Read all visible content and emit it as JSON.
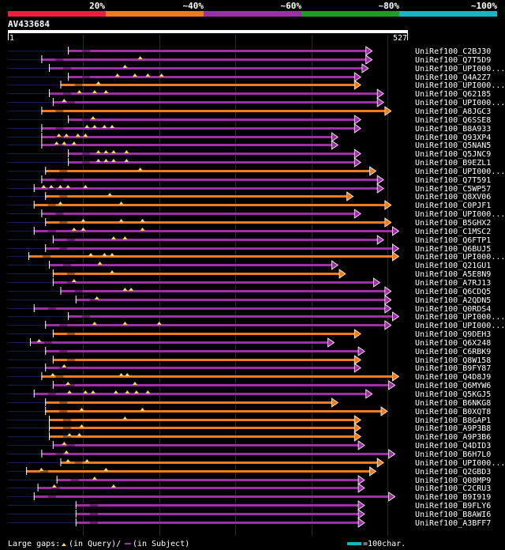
{
  "legend_bar": {
    "segments": [
      {
        "label": "20%",
        "color": "#e8203c"
      },
      {
        "label": "~40%",
        "color": "#f07a1c"
      },
      {
        "label": "~60%",
        "color": "#9c30a4"
      },
      {
        "label": "~80%",
        "color": "#1e9c28"
      },
      {
        "label": "~100%",
        "color": "#18b4c4"
      }
    ]
  },
  "query": {
    "id": "AV433684",
    "start_label": "1",
    "end_label": "527",
    "length": 527
  },
  "colors": {
    "orange": "#f07a1c",
    "purple": "#9c30a4",
    "gap": "#ffd860",
    "grid": "#2a2a2a"
  },
  "hits": [
    {
      "label": "UniRef100_C2BJ30",
      "color": "purple",
      "start": 80,
      "end": 480,
      "gaps": []
    },
    {
      "label": "UniRef100_Q7T5D9",
      "color": "purple",
      "start": 45,
      "end": 480,
      "gaps": [
        175
      ]
    },
    {
      "label": "UniRef100_UPI000...",
      "color": "purple",
      "start": 55,
      "end": 475,
      "gaps": [
        155
      ]
    },
    {
      "label": "UniRef100_Q4A2Z7",
      "color": "purple",
      "start": 80,
      "end": 465,
      "gaps": [
        145,
        168,
        185,
        203
      ]
    },
    {
      "label": "UniRef100_UPI000...",
      "color": "orange",
      "start": 70,
      "end": 465,
      "gaps": [
        120
      ]
    },
    {
      "label": "UniRef100_Q62185",
      "color": "purple",
      "start": 55,
      "end": 495,
      "gaps": [
        95,
        115,
        130
      ]
    },
    {
      "label": "UniRef100_UPI000...",
      "color": "purple",
      "start": 60,
      "end": 495,
      "gaps": [
        75
      ]
    },
    {
      "label": "UniRef100_A8JGC3",
      "color": "orange",
      "start": 45,
      "end": 505,
      "gaps": []
    },
    {
      "label": "UniRef100_Q6SSE8",
      "color": "purple",
      "start": 80,
      "end": 465,
      "gaps": [
        113
      ]
    },
    {
      "label": "UniRef100_B8A933",
      "color": "purple",
      "start": 45,
      "end": 465,
      "gaps": [
        105,
        115,
        128,
        138
      ]
    },
    {
      "label": "UniRef100_Q93XP4",
      "color": "purple",
      "start": 45,
      "end": 435,
      "gaps": [
        68,
        78,
        93,
        103
      ]
    },
    {
      "label": "UniRef100_Q5NAN5",
      "color": "purple",
      "start": 45,
      "end": 435,
      "gaps": [
        65,
        75,
        88
      ]
    },
    {
      "label": "UniRef100_Q5JNC9",
      "color": "purple",
      "start": 80,
      "end": 465,
      "gaps": [
        120,
        130,
        140,
        157
      ]
    },
    {
      "label": "UniRef100_B9EZL1",
      "color": "purple",
      "start": 80,
      "end": 465,
      "gaps": [
        120,
        130,
        140,
        157
      ]
    },
    {
      "label": "UniRef100_UPI000...",
      "color": "orange",
      "start": 50,
      "end": 485,
      "gaps": [
        175
      ]
    },
    {
      "label": "UniRef100_Q7T591",
      "color": "purple",
      "start": 45,
      "end": 495,
      "gaps": []
    },
    {
      "label": "UniRef100_C5WP57",
      "color": "purple",
      "start": 35,
      "end": 495,
      "gaps": [
        48,
        58,
        70,
        80,
        103
      ]
    },
    {
      "label": "UniRef100_Q8XV06",
      "color": "orange",
      "start": 50,
      "end": 455,
      "gaps": [
        135
      ]
    },
    {
      "label": "UniRef100_C0PJF1",
      "color": "orange",
      "start": 35,
      "end": 505,
      "gaps": [
        70,
        150
      ]
    },
    {
      "label": "UniRef100_UPI000...",
      "color": "purple",
      "start": 45,
      "end": 465,
      "gaps": []
    },
    {
      "label": "UniRef100_B5GHX2",
      "color": "orange",
      "start": 50,
      "end": 505,
      "gaps": [
        100,
        150,
        178
      ]
    },
    {
      "label": "UniRef100_C1MSC2",
      "color": "purple",
      "start": 35,
      "end": 515,
      "gaps": [
        88,
        100,
        178
      ]
    },
    {
      "label": "UniRef100_Q6FTP1",
      "color": "purple",
      "start": 60,
      "end": 495,
      "gaps": [
        140,
        155
      ]
    },
    {
      "label": "UniRef100_Q6BUJ5",
      "color": "purple",
      "start": 50,
      "end": 515,
      "gaps": []
    },
    {
      "label": "UniRef100_UPI000...",
      "color": "orange",
      "start": 28,
      "end": 515,
      "gaps": [
        110,
        128,
        138
      ]
    },
    {
      "label": "UniRef100_Q21GU1",
      "color": "purple",
      "start": 55,
      "end": 435,
      "gaps": [
        122
      ]
    },
    {
      "label": "UniRef100_A5E8N9",
      "color": "orange",
      "start": 60,
      "end": 445,
      "gaps": [
        138
      ]
    },
    {
      "label": "UniRef100_A7RJ13",
      "color": "purple",
      "start": 60,
      "end": 490,
      "gaps": [
        88
      ]
    },
    {
      "label": "UniRef100_Q6CDQ5",
      "color": "purple",
      "start": 70,
      "end": 505,
      "gaps": [
        155,
        163
      ]
    },
    {
      "label": "UniRef100_A2QDN5",
      "color": "purple",
      "start": 90,
      "end": 505,
      "gaps": [
        118
      ]
    },
    {
      "label": "UniRef100_Q0RDS4",
      "color": "purple",
      "start": 35,
      "end": 505,
      "gaps": []
    },
    {
      "label": "UniRef100_UPI000...",
      "color": "purple",
      "start": 80,
      "end": 515,
      "gaps": []
    },
    {
      "label": "UniRef100_UPI000...",
      "color": "purple",
      "start": 50,
      "end": 505,
      "gaps": [
        115,
        155,
        200
      ]
    },
    {
      "label": "UniRef100_Q9DEH3",
      "color": "orange",
      "start": 60,
      "end": 465,
      "gaps": []
    },
    {
      "label": "UniRef100_Q6X248",
      "color": "purple",
      "start": 30,
      "end": 430,
      "gaps": [
        42
      ]
    },
    {
      "label": "UniRef100_C6RBK9",
      "color": "purple",
      "start": 50,
      "end": 470,
      "gaps": []
    },
    {
      "label": "UniRef100_Q8W158",
      "color": "orange",
      "start": 60,
      "end": 465,
      "gaps": []
    },
    {
      "label": "UniRef100_B9FY87",
      "color": "purple",
      "start": 50,
      "end": 465,
      "gaps": [
        75
      ]
    },
    {
      "label": "UniRef100_Q4D8J9",
      "color": "orange",
      "start": 45,
      "end": 515,
      "gaps": [
        60,
        150,
        158
      ]
    },
    {
      "label": "UniRef100_Q6MYW6",
      "color": "purple",
      "start": 60,
      "end": 510,
      "gaps": [
        80,
        168
      ]
    },
    {
      "label": "UniRef100_Q5KGJ5",
      "color": "purple",
      "start": 35,
      "end": 480,
      "gaps": [
        82,
        103,
        113,
        143,
        158,
        170,
        185
      ]
    },
    {
      "label": "UniRef100_B6NKG8",
      "color": "orange",
      "start": 50,
      "end": 435,
      "gaps": []
    },
    {
      "label": "UniRef100_B0XQT8",
      "color": "orange",
      "start": 50,
      "end": 500,
      "gaps": [
        98,
        178
      ]
    },
    {
      "label": "UniRef100_B8GAP1",
      "color": "orange",
      "start": 55,
      "end": 465,
      "gaps": [
        155
      ]
    },
    {
      "label": "UniRef100_A9P3B8",
      "color": "orange",
      "start": 55,
      "end": 465,
      "gaps": [
        98
      ]
    },
    {
      "label": "UniRef100_A9P3B6",
      "color": "orange",
      "start": 55,
      "end": 465,
      "gaps": [
        82,
        95
      ]
    },
    {
      "label": "UniRef100_Q4DID3",
      "color": "purple",
      "start": 60,
      "end": 470,
      "gaps": [
        75
      ]
    },
    {
      "label": "UniRef100_B6H7L0",
      "color": "purple",
      "start": 45,
      "end": 510,
      "gaps": [
        78
      ]
    },
    {
      "label": "UniRef100_UPI000...",
      "color": "orange",
      "start": 70,
      "end": 495,
      "gaps": [
        80,
        105
      ]
    },
    {
      "label": "UniRef100_Q2GBD3",
      "color": "orange",
      "start": 25,
      "end": 485,
      "gaps": [
        45,
        130
      ]
    },
    {
      "label": "UniRef100_Q08MP9",
      "color": "purple",
      "start": 65,
      "end": 470,
      "gaps": [
        115
      ]
    },
    {
      "label": "UniRef100_C2CRU3",
      "color": "purple",
      "start": 40,
      "end": 470,
      "gaps": [
        62,
        140
      ]
    },
    {
      "label": "UniRef100_B9I919",
      "color": "purple",
      "start": 35,
      "end": 510,
      "gaps": []
    },
    {
      "label": "UniRef100_B9FLY6",
      "color": "purple",
      "start": 90,
      "end": 470,
      "gaps": []
    },
    {
      "label": "UniRef100_B8AWI6",
      "color": "purple",
      "start": 90,
      "end": 470,
      "gaps": []
    },
    {
      "label": "UniRef100_A3BFF7",
      "color": "purple",
      "start": 90,
      "end": 470,
      "gaps": []
    }
  ],
  "footer": {
    "large_gaps_label": "Large gaps:",
    "query_gap_text": "(in Query)/",
    "subject_gap_text": "(in Subject)",
    "scale_text": "=100char."
  }
}
